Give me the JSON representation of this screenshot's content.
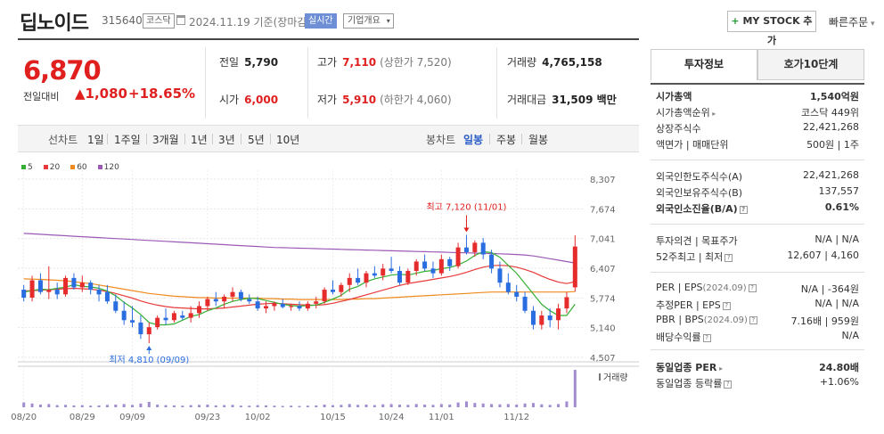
{
  "header": {
    "name": "딥노이드",
    "code": "315640",
    "market_badge": "코스닥",
    "date": "2024.11.19 기준(장마감)",
    "realtime": "실시간",
    "company_overview": "기업개요",
    "mystock_plus": "+",
    "mystock_label": "MY STOCK 추가",
    "fast_order": "빠른주문"
  },
  "quote": {
    "price": "6,870",
    "change_label": "전일대비",
    "change_arrow": "▲",
    "change_value": "1,080",
    "change_pct": "+18.65%",
    "prev_label": "전일",
    "prev": "5,790",
    "high_label": "고가",
    "high": "7,110",
    "upper_limit": "(상한가 7,520)",
    "volume_label": "거래량",
    "volume": "4,765,158",
    "open_label": "시가",
    "open": "6,000",
    "low_label": "저가",
    "low": "5,910",
    "lower_limit": "(하한가 4,060)",
    "amount_label": "거래대금",
    "amount": "31,509 백만"
  },
  "tabs": {
    "line_chart": "선차트",
    "periods": [
      "1일",
      "1주일",
      "3개월",
      "1년",
      "3년",
      "5년",
      "10년"
    ],
    "candle_chart": "봉차트",
    "candles": [
      "일봉",
      "주봉",
      "월봉"
    ],
    "active_candle": "일봉"
  },
  "chart_data": {
    "type": "candlestick",
    "legend": [
      {
        "name": "5",
        "color": "#33b033"
      },
      {
        "name": "20",
        "color": "#e83a3a"
      },
      {
        "name": "60",
        "color": "#f08a1c"
      },
      {
        "name": "120",
        "color": "#9b59b6"
      }
    ],
    "y_ticks": [
      "8,307",
      "7,674",
      "7,041",
      "6,407",
      "5,774",
      "5,140",
      "4,507"
    ],
    "ylim": [
      4507,
      8307
    ],
    "x_ticks": [
      "08/20",
      "08/29",
      "09/09",
      "09/23",
      "10/02",
      "10/15",
      "10/24",
      "11/01",
      "11/12"
    ],
    "volume_label": "거래량",
    "high_annotation": "최고 7,120 (11/01)",
    "low_annotation": "최저 4,810 (09/09)",
    "candles": [
      {
        "o": 5950,
        "h": 6050,
        "l": 5700,
        "c": 5780
      },
      {
        "o": 5780,
        "h": 6250,
        "l": 5700,
        "c": 6150
      },
      {
        "o": 6150,
        "h": 6300,
        "l": 5850,
        "c": 5900
      },
      {
        "o": 5900,
        "h": 6450,
        "l": 5750,
        "c": 5950
      },
      {
        "o": 5950,
        "h": 6100,
        "l": 5750,
        "c": 5850
      },
      {
        "o": 5850,
        "h": 6250,
        "l": 5800,
        "c": 6200
      },
      {
        "o": 6200,
        "h": 6300,
        "l": 5950,
        "c": 6000
      },
      {
        "o": 6000,
        "h": 6250,
        "l": 5900,
        "c": 6100
      },
      {
        "o": 6100,
        "h": 6150,
        "l": 5850,
        "c": 5950
      },
      {
        "o": 5950,
        "h": 6050,
        "l": 5700,
        "c": 5850
      },
      {
        "o": 5900,
        "h": 6050,
        "l": 5650,
        "c": 5700
      },
      {
        "o": 5700,
        "h": 5850,
        "l": 5450,
        "c": 5500
      },
      {
        "o": 5500,
        "h": 5700,
        "l": 5200,
        "c": 5300
      },
      {
        "o": 5300,
        "h": 5600,
        "l": 5150,
        "c": 5250
      },
      {
        "o": 5250,
        "h": 5400,
        "l": 4900,
        "c": 5000
      },
      {
        "o": 5000,
        "h": 5250,
        "l": 4810,
        "c": 5150
      },
      {
        "o": 5150,
        "h": 5400,
        "l": 5100,
        "c": 5350
      },
      {
        "o": 5350,
        "h": 5550,
        "l": 5200,
        "c": 5300
      },
      {
        "o": 5300,
        "h": 5500,
        "l": 5250,
        "c": 5450
      },
      {
        "o": 5400,
        "h": 5500,
        "l": 5300,
        "c": 5350
      },
      {
        "o": 5350,
        "h": 5600,
        "l": 5250,
        "c": 5450
      },
      {
        "o": 5450,
        "h": 5700,
        "l": 5350,
        "c": 5600
      },
      {
        "o": 5600,
        "h": 5800,
        "l": 5500,
        "c": 5750
      },
      {
        "o": 5750,
        "h": 5900,
        "l": 5600,
        "c": 5700
      },
      {
        "o": 5700,
        "h": 5850,
        "l": 5550,
        "c": 5800
      },
      {
        "o": 5800,
        "h": 6000,
        "l": 5700,
        "c": 5900
      },
      {
        "o": 5900,
        "h": 5950,
        "l": 5700,
        "c": 5750
      },
      {
        "o": 5750,
        "h": 5850,
        "l": 5650,
        "c": 5700
      },
      {
        "o": 5700,
        "h": 5800,
        "l": 5500,
        "c": 5550
      },
      {
        "o": 5550,
        "h": 5700,
        "l": 5450,
        "c": 5600
      },
      {
        "o": 5600,
        "h": 5700,
        "l": 5500,
        "c": 5650
      },
      {
        "o": 5650,
        "h": 5750,
        "l": 5550,
        "c": 5580
      },
      {
        "o": 5580,
        "h": 5650,
        "l": 5500,
        "c": 5600
      },
      {
        "o": 5600,
        "h": 5700,
        "l": 5500,
        "c": 5550
      },
      {
        "o": 5550,
        "h": 5700,
        "l": 5500,
        "c": 5650
      },
      {
        "o": 5650,
        "h": 5800,
        "l": 5550,
        "c": 5700
      },
      {
        "o": 5700,
        "h": 6000,
        "l": 5650,
        "c": 5950
      },
      {
        "o": 5950,
        "h": 6150,
        "l": 5850,
        "c": 5900
      },
      {
        "o": 5900,
        "h": 6100,
        "l": 5800,
        "c": 6050
      },
      {
        "o": 6050,
        "h": 6300,
        "l": 5900,
        "c": 6200
      },
      {
        "o": 6200,
        "h": 6400,
        "l": 6050,
        "c": 6100
      },
      {
        "o": 6100,
        "h": 6350,
        "l": 6000,
        "c": 6300
      },
      {
        "o": 6300,
        "h": 6450,
        "l": 6200,
        "c": 6250
      },
      {
        "o": 6250,
        "h": 6500,
        "l": 6150,
        "c": 6400
      },
      {
        "o": 6400,
        "h": 6650,
        "l": 6300,
        "c": 6350
      },
      {
        "o": 6350,
        "h": 6450,
        "l": 6050,
        "c": 6100
      },
      {
        "o": 6100,
        "h": 6400,
        "l": 6050,
        "c": 6350
      },
      {
        "o": 6350,
        "h": 6600,
        "l": 6250,
        "c": 6550
      },
      {
        "o": 6550,
        "h": 6700,
        "l": 6350,
        "c": 6400
      },
      {
        "o": 6400,
        "h": 6550,
        "l": 6200,
        "c": 6300
      },
      {
        "o": 6300,
        "h": 6700,
        "l": 6250,
        "c": 6600
      },
      {
        "o": 6600,
        "h": 6650,
        "l": 6350,
        "c": 6450
      },
      {
        "o": 6450,
        "h": 6950,
        "l": 6400,
        "c": 6850
      },
      {
        "o": 6850,
        "h": 7120,
        "l": 6700,
        "c": 6750
      },
      {
        "o": 6750,
        "h": 7000,
        "l": 6650,
        "c": 6950
      },
      {
        "o": 6950,
        "h": 7050,
        "l": 6600,
        "c": 6700
      },
      {
        "o": 6700,
        "h": 6800,
        "l": 6300,
        "c": 6400
      },
      {
        "o": 6400,
        "h": 6550,
        "l": 6000,
        "c": 6100
      },
      {
        "o": 6100,
        "h": 6300,
        "l": 5850,
        "c": 5900
      },
      {
        "o": 5900,
        "h": 6050,
        "l": 5700,
        "c": 5800
      },
      {
        "o": 5800,
        "h": 5900,
        "l": 5450,
        "c": 5500
      },
      {
        "o": 5500,
        "h": 5600,
        "l": 5100,
        "c": 5200
      },
      {
        "o": 5200,
        "h": 5500,
        "l": 5100,
        "c": 5400
      },
      {
        "o": 5400,
        "h": 5550,
        "l": 5150,
        "c": 5300
      },
      {
        "o": 5300,
        "h": 5650,
        "l": 5100,
        "c": 5550
      },
      {
        "o": 5550,
        "h": 5900,
        "l": 5450,
        "c": 5790
      },
      {
        "o": 6000,
        "h": 7110,
        "l": 5910,
        "c": 6870
      }
    ],
    "volumes": [
      18,
      14,
      10,
      12,
      8,
      9,
      7,
      8,
      6,
      7,
      9,
      10,
      12,
      9,
      14,
      20,
      10,
      8,
      7,
      6,
      8,
      9,
      10,
      7,
      8,
      9,
      6,
      6,
      8,
      7,
      6,
      5,
      6,
      5,
      6,
      7,
      10,
      8,
      9,
      12,
      9,
      10,
      8,
      11,
      12,
      10,
      9,
      12,
      10,
      9,
      12,
      10,
      18,
      22,
      16,
      14,
      12,
      11,
      12,
      10,
      14,
      16,
      11,
      9,
      12,
      22,
      140
    ],
    "ma5": [
      5900,
      5930,
      5960,
      5950,
      5980,
      6000,
      6060,
      6020,
      6010,
      5980,
      5920,
      5820,
      5680,
      5560,
      5420,
      5250,
      5200,
      5200,
      5220,
      5300,
      5380,
      5420,
      5500,
      5560,
      5640,
      5700,
      5740,
      5770,
      5760,
      5720,
      5680,
      5640,
      5610,
      5600,
      5610,
      5620,
      5680,
      5750,
      5830,
      5960,
      6020,
      6120,
      6180,
      6220,
      6260,
      6280,
      6260,
      6300,
      6340,
      6360,
      6400,
      6420,
      6480,
      6560,
      6680,
      6760,
      6740,
      6640,
      6470,
      6300,
      6080,
      5860,
      5640,
      5500,
      5400,
      5400,
      5640
    ],
    "ma20": [
      5920,
      5930,
      5940,
      5950,
      5960,
      5970,
      5980,
      5970,
      5960,
      5940,
      5910,
      5870,
      5820,
      5770,
      5710,
      5660,
      5620,
      5590,
      5570,
      5560,
      5550,
      5540,
      5540,
      5550,
      5560,
      5580,
      5600,
      5620,
      5640,
      5650,
      5660,
      5650,
      5640,
      5630,
      5620,
      5620,
      5630,
      5660,
      5700,
      5740,
      5790,
      5840,
      5890,
      5940,
      5990,
      6040,
      6080,
      6110,
      6140,
      6170,
      6200,
      6230,
      6270,
      6320,
      6380,
      6430,
      6460,
      6470,
      6460,
      6430,
      6380,
      6320,
      6240,
      6170,
      6110,
      6080,
      6120
    ],
    "ma60": [
      6180,
      6175,
      6170,
      6160,
      6150,
      6140,
      6120,
      6100,
      6080,
      6050,
      6020,
      5990,
      5960,
      5930,
      5900,
      5870,
      5850,
      5830,
      5810,
      5800,
      5790,
      5780,
      5780,
      5770,
      5770,
      5770,
      5770,
      5770,
      5770,
      5760,
      5760,
      5750,
      5750,
      5740,
      5740,
      5740,
      5740,
      5740,
      5740,
      5750,
      5750,
      5760,
      5760,
      5770,
      5780,
      5790,
      5800,
      5810,
      5820,
      5830,
      5840,
      5850,
      5860,
      5870,
      5880,
      5890,
      5900,
      5900,
      5900,
      5900,
      5900,
      5900,
      5900,
      5900,
      5900,
      5900,
      5910
    ],
    "ma120": [
      7150,
      7140,
      7130,
      7120,
      7110,
      7100,
      7090,
      7080,
      7070,
      7060,
      7050,
      7040,
      7030,
      7020,
      7010,
      7000,
      6990,
      6980,
      6970,
      6960,
      6950,
      6940,
      6930,
      6920,
      6910,
      6900,
      6890,
      6880,
      6870,
      6860,
      6850,
      6845,
      6840,
      6835,
      6830,
      6825,
      6820,
      6815,
      6810,
      6805,
      6800,
      6795,
      6790,
      6785,
      6780,
      6775,
      6770,
      6765,
      6760,
      6755,
      6750,
      6745,
      6740,
      6735,
      6730,
      6725,
      6720,
      6715,
      6710,
      6700,
      6690,
      6670,
      6640,
      6610,
      6580,
      6550,
      6520
    ]
  },
  "right_panel": {
    "tab_active": "투자정보",
    "tab_other": "호가10단계",
    "rows": [
      {
        "label": "시가총액",
        "value": "1,540억원",
        "bold": true
      },
      {
        "label": "시가총액순위",
        "value": "코스닥 449위",
        "tri": true
      },
      {
        "label": "상장주식수",
        "value": "22,421,268"
      },
      {
        "label": "액면가 | 매매단위",
        "value": "500원 | 1주"
      },
      {
        "label": "외국인한도주식수(A)",
        "value": "22,421,268"
      },
      {
        "label": "외국인보유주식수(B)",
        "value": "137,557"
      },
      {
        "label": "외국인소진율(B/A)",
        "value": "0.61%",
        "bold": true,
        "q": true
      },
      {
        "label": "투자의견 | 목표주가",
        "value": "N/A | N/A"
      },
      {
        "label": "52주최고 | 최저",
        "value": "12,607 | 4,160",
        "q": true
      },
      {
        "label": "PER | EPS",
        "sub": "(2024.09)",
        "value": "N/A | -364원",
        "q": true
      },
      {
        "label": "추정PER | EPS",
        "value": "N/A | N/A",
        "q": true
      },
      {
        "label": "PBR | BPS",
        "sub": "(2024.09)",
        "value": "7.16배 | 959원",
        "q": true
      },
      {
        "label": "배당수익률",
        "value": "N/A",
        "q": true
      },
      {
        "label": "동일업종 PER",
        "value": "24.80배",
        "bold": true,
        "tri": true
      },
      {
        "label": "동일업종 등락률",
        "value": "+1.06%",
        "red": true,
        "q": true
      }
    ]
  }
}
